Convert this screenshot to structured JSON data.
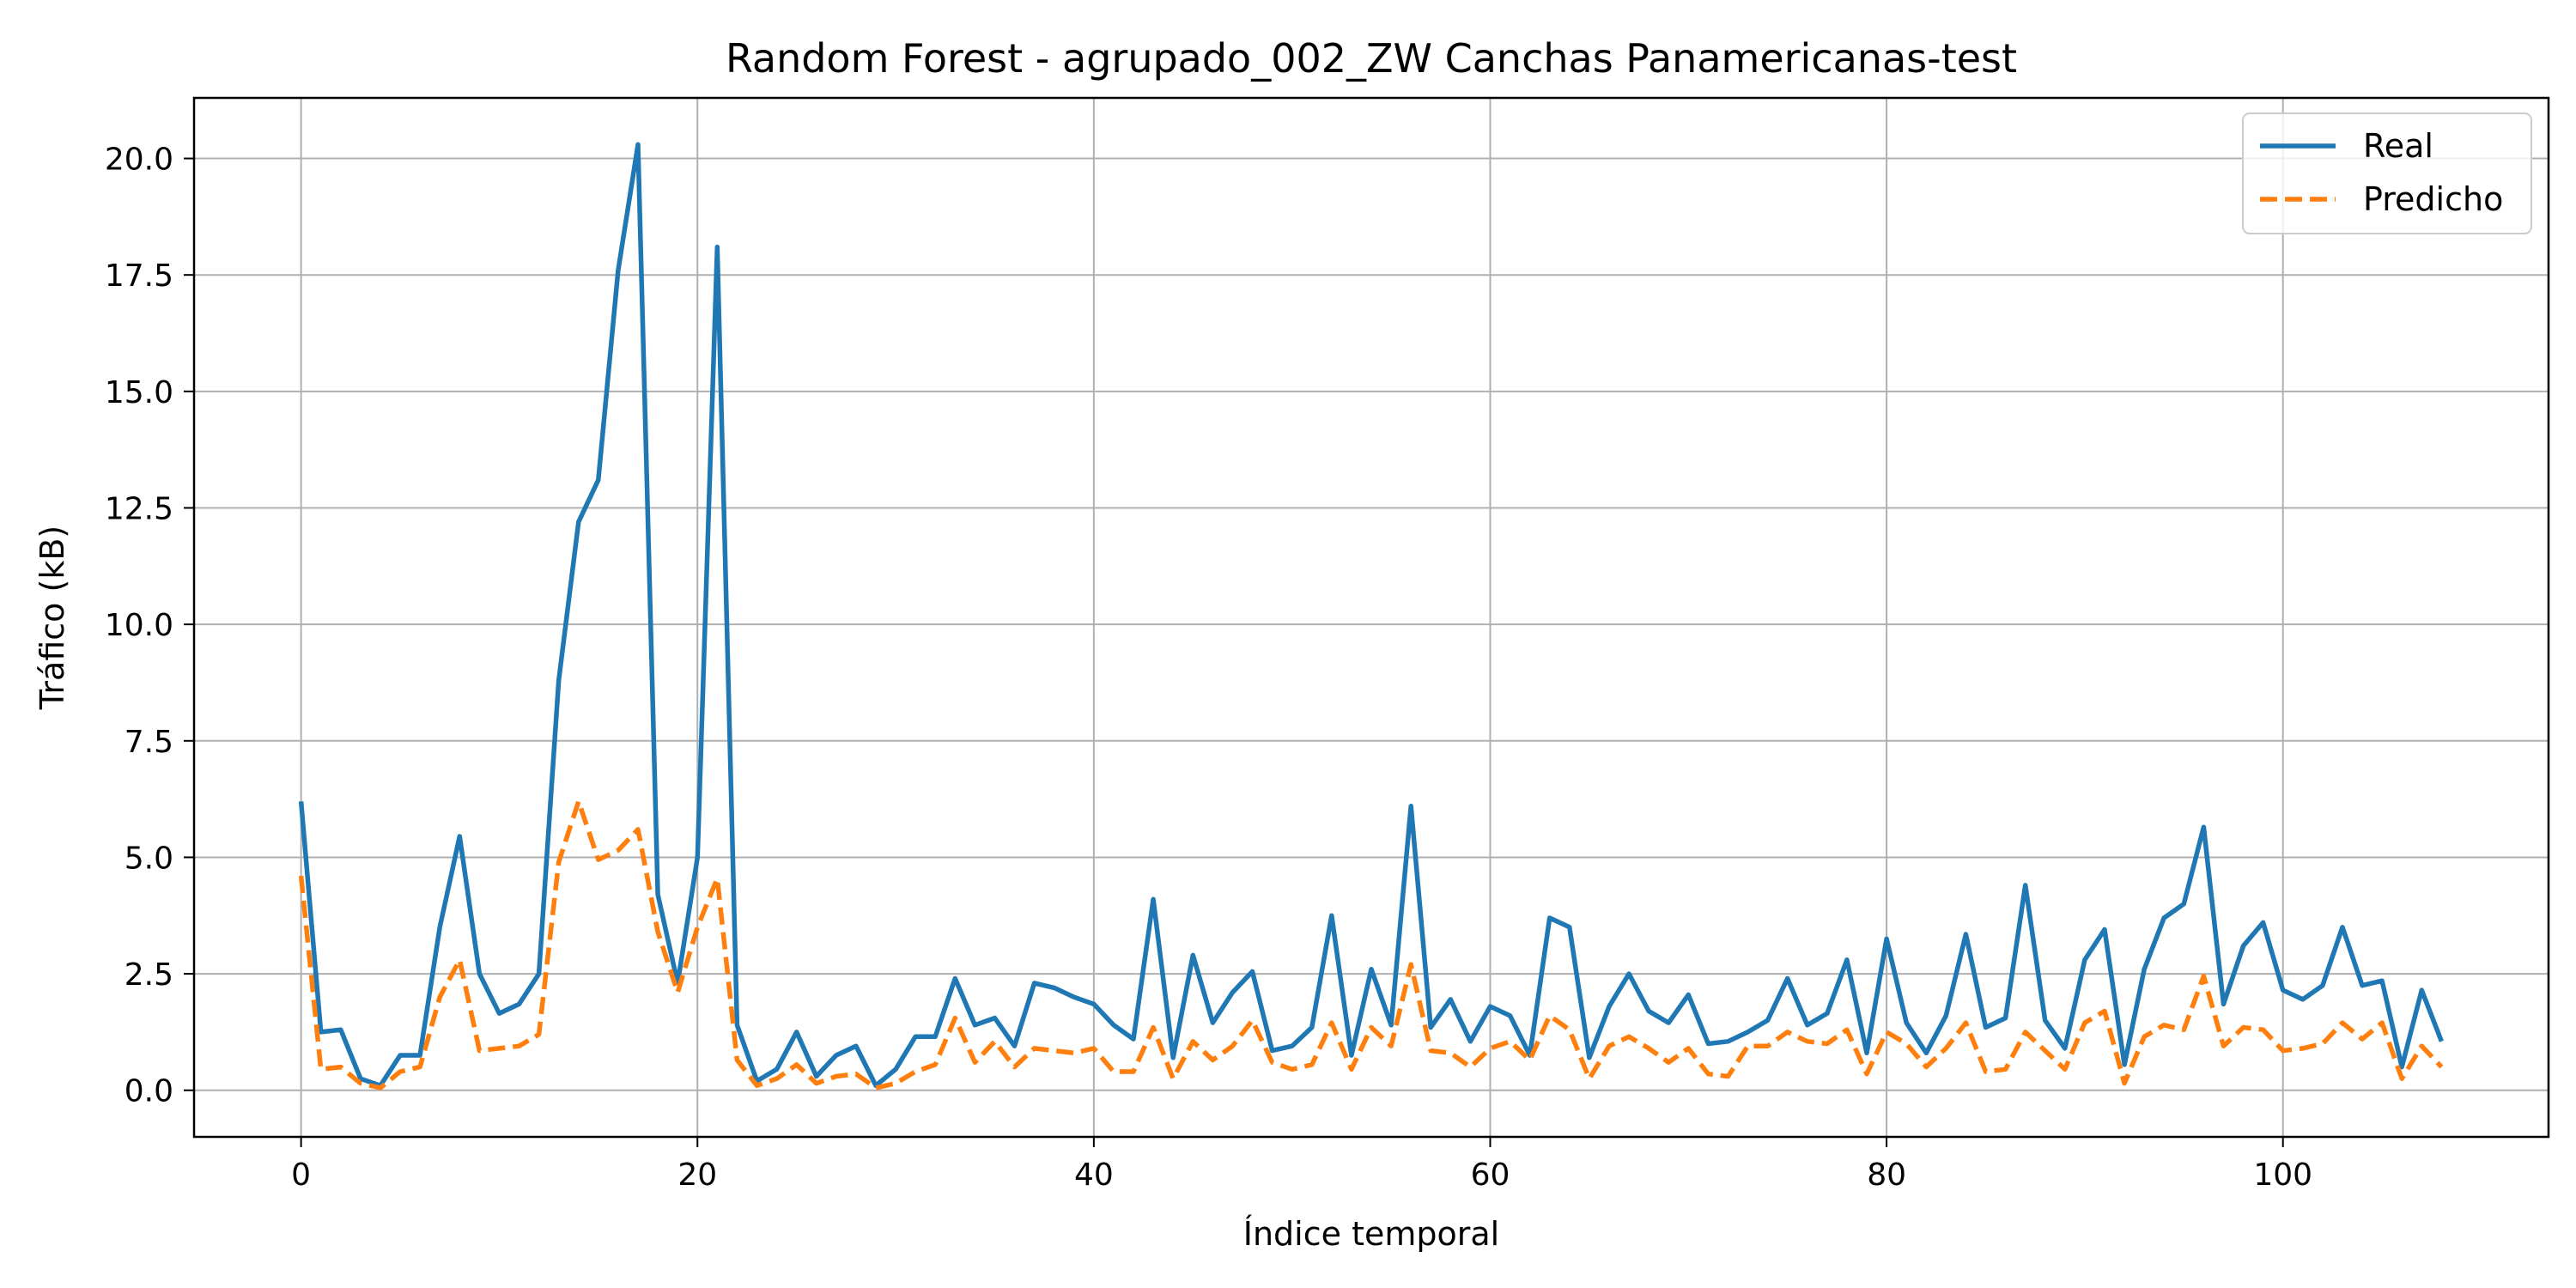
{
  "chart_data": {
    "type": "line",
    "title": "Random Forest - agrupado_002_ZW Canchas Panamericanas-test",
    "xlabel": "Índice temporal",
    "ylabel": "Tráfico (kB)",
    "xlim": [
      -5.4,
      113.4
    ],
    "ylim": [
      -1.0,
      21.3
    ],
    "xticks": [
      0,
      20,
      40,
      60,
      80,
      100
    ],
    "yticks": [
      0.0,
      2.5,
      5.0,
      7.5,
      10.0,
      12.5,
      15.0,
      17.5,
      20.0
    ],
    "xtick_labels": [
      "0",
      "20",
      "40",
      "60",
      "80",
      "100"
    ],
    "ytick_labels": [
      "0.0",
      "2.5",
      "5.0",
      "7.5",
      "10.0",
      "12.5",
      "15.0",
      "17.5",
      "20.0"
    ],
    "grid": true,
    "legend_position": "top-right",
    "series": [
      {
        "name": "Real",
        "color": "#1f77b4",
        "style": "solid",
        "values": [
          6.2,
          1.25,
          1.3,
          0.25,
          0.1,
          0.75,
          0.75,
          3.5,
          5.45,
          2.5,
          1.65,
          1.85,
          2.5,
          8.8,
          12.2,
          13.1,
          17.6,
          20.3,
          4.2,
          2.3,
          5.0,
          18.1,
          1.4,
          0.2,
          0.45,
          1.25,
          0.3,
          0.75,
          0.95,
          0.1,
          0.45,
          1.15,
          1.15,
          2.4,
          1.4,
          1.55,
          0.95,
          2.3,
          2.2,
          2.0,
          1.85,
          1.4,
          1.1,
          4.1,
          0.7,
          2.9,
          1.45,
          2.1,
          2.55,
          0.85,
          0.95,
          1.35,
          3.75,
          0.75,
          2.6,
          1.4,
          6.1,
          1.35,
          1.95,
          1.05,
          1.8,
          1.6,
          0.75,
          3.7,
          3.5,
          0.7,
          1.8,
          2.5,
          1.7,
          1.45,
          2.05,
          1.0,
          1.05,
          1.25,
          1.5,
          2.4,
          1.4,
          1.65,
          2.8,
          0.8,
          3.25,
          1.45,
          0.8,
          1.6,
          3.35,
          1.35,
          1.55,
          4.4,
          1.5,
          0.9,
          2.8,
          3.45,
          0.55,
          2.6,
          3.7,
          4.0,
          5.65,
          1.85,
          3.1,
          3.6,
          2.15,
          1.95,
          2.25,
          3.5,
          2.25,
          2.35,
          0.5,
          2.15,
          1.05
        ]
      },
      {
        "name": "Predicho",
        "color": "#ff7f0e",
        "style": "dashed",
        "values": [
          4.6,
          0.45,
          0.5,
          0.15,
          0.05,
          0.4,
          0.5,
          2.0,
          2.8,
          0.85,
          0.9,
          0.95,
          1.2,
          4.9,
          6.2,
          4.95,
          5.15,
          5.6,
          3.4,
          2.1,
          3.5,
          4.55,
          0.65,
          0.1,
          0.25,
          0.55,
          0.15,
          0.3,
          0.35,
          0.05,
          0.15,
          0.4,
          0.55,
          1.55,
          0.6,
          1.05,
          0.5,
          0.9,
          0.85,
          0.8,
          0.9,
          0.4,
          0.4,
          1.35,
          0.25,
          1.05,
          0.65,
          0.95,
          1.5,
          0.6,
          0.45,
          0.55,
          1.45,
          0.45,
          1.35,
          0.95,
          2.7,
          0.85,
          0.8,
          0.5,
          0.9,
          1.05,
          0.65,
          1.6,
          1.3,
          0.25,
          0.95,
          1.15,
          0.9,
          0.6,
          0.9,
          0.35,
          0.3,
          0.95,
          0.95,
          1.25,
          1.05,
          1.0,
          1.3,
          0.35,
          1.25,
          1.0,
          0.5,
          0.9,
          1.45,
          0.4,
          0.45,
          1.25,
          0.85,
          0.45,
          1.45,
          1.7,
          0.15,
          1.15,
          1.4,
          1.3,
          2.45,
          0.95,
          1.35,
          1.3,
          0.85,
          0.9,
          1.0,
          1.45,
          1.1,
          1.45,
          0.25,
          0.95,
          0.5
        ]
      }
    ]
  }
}
